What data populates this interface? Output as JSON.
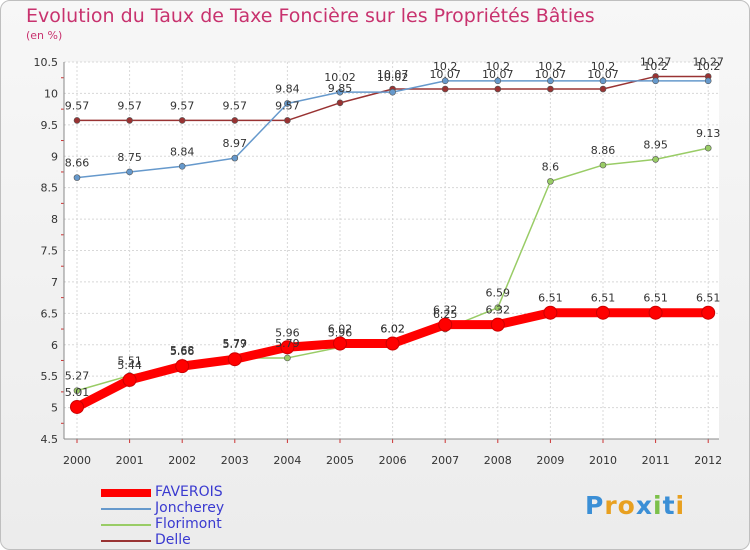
{
  "chart_data": {
    "type": "line",
    "title": "Evolution du Taux de Taxe Foncière sur les Propriétés Bâties",
    "subtitle": "(en %)",
    "xlabel": "",
    "ylabel": "",
    "ylim": [
      4.5,
      10.5
    ],
    "yticks": [
      "4.5",
      "5",
      "5.5",
      "6",
      "6.5",
      "7",
      "7.5",
      "8",
      "8.5",
      "9",
      "9.5",
      "10",
      "10.5"
    ],
    "x": [
      "2000",
      "2001",
      "2002",
      "2003",
      "2004",
      "2005",
      "2006",
      "2007",
      "2008",
      "2009",
      "2010",
      "2011",
      "2012"
    ],
    "grid": true,
    "legend_position": "bottom-left",
    "series": [
      {
        "name": "FAVEROIS",
        "color": "#ff0000",
        "values": [
          5.01,
          5.44,
          5.66,
          5.77,
          5.96,
          6.02,
          6.02,
          6.32,
          6.32,
          6.51,
          6.51,
          6.51,
          6.51
        ],
        "labels": [
          "5.01",
          "5.44",
          "5.66",
          "5.77",
          "5.96",
          "6.02",
          "6.02",
          "6.32",
          "6.32",
          "6.51",
          "6.51",
          "6.51",
          "6.51"
        ]
      },
      {
        "name": "Joncherey",
        "color": "#6699cc",
        "values": [
          8.66,
          8.75,
          8.84,
          8.97,
          9.84,
          10.02,
          10.02,
          10.2,
          10.2,
          10.2,
          10.2,
          10.2,
          10.2
        ],
        "labels": [
          "8.66",
          "8.75",
          "8.84",
          "8.97",
          "9.84",
          "10.02",
          "10.02",
          "10.2",
          "10.2",
          "10.2",
          "10.2",
          "10.2",
          "10.2"
        ]
      },
      {
        "name": "Florimont",
        "color": "#99cc66",
        "values": [
          5.27,
          5.51,
          5.68,
          5.79,
          5.79,
          5.96,
          6.02,
          6.25,
          6.59,
          8.6,
          8.86,
          8.95,
          9.13
        ],
        "labels": [
          "5.27",
          "5.51",
          "5.68",
          "5.79",
          "5.79",
          "5.96",
          "6.02",
          "6.25",
          "6.59",
          "8.6",
          "8.86",
          "8.95",
          "9.13"
        ]
      },
      {
        "name": "Delle",
        "color": "#993333",
        "values": [
          9.57,
          9.57,
          9.57,
          9.57,
          9.57,
          9.85,
          10.07,
          10.07,
          10.07,
          10.07,
          10.07,
          10.27,
          10.27
        ],
        "labels": [
          "9.57",
          "9.57",
          "9.57",
          "9.57",
          "9.57",
          "9.85",
          "10.07",
          "10.07",
          "10.07",
          "10.07",
          "10.07",
          "10.27",
          "10.27"
        ]
      }
    ]
  },
  "legend": [
    {
      "label": "FAVEROIS",
      "color": "#ff0000"
    },
    {
      "label": "Joncherey",
      "color": "#6699cc"
    },
    {
      "label": "Florimont",
      "color": "#99cc66"
    },
    {
      "label": "Delle",
      "color": "#993333"
    }
  ],
  "logo": {
    "letters": [
      "P",
      "r",
      "o",
      "x",
      "i",
      "t",
      "i"
    ],
    "colors": [
      "#3b8fd6",
      "#e8a020",
      "#e8a020",
      "#3b8fd6",
      "#7cc04a",
      "#3b8fd6",
      "#e8a020"
    ]
  }
}
